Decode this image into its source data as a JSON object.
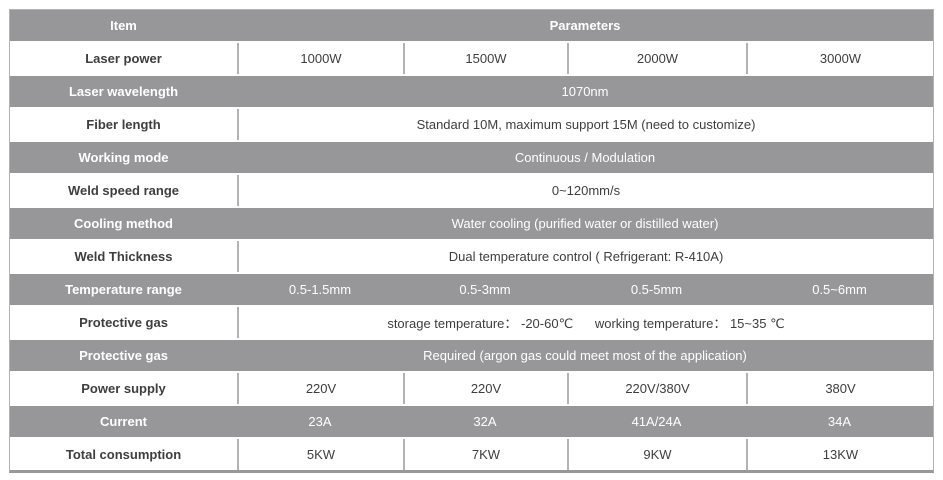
{
  "table": {
    "colors": {
      "row_gray": "#97979a",
      "separator": "#b3b3b5",
      "outer_border": "#b3b3b5",
      "text_dark": "#3e3e40",
      "text_light": "#ffffff"
    },
    "rows": [
      {
        "label": "Item",
        "value": "Parameters"
      },
      {
        "label": "Laser power",
        "values": [
          "1000W",
          "1500W",
          "2000W",
          "3000W"
        ]
      },
      {
        "label": "Laser wavelength",
        "value": "1070nm"
      },
      {
        "label": "Fiber length",
        "value": "Standard 10M, maximum support 15M (need to customize)"
      },
      {
        "label": "Working mode",
        "value": "Continuous / Modulation"
      },
      {
        "label": "Weld speed range",
        "value": "0~120mm/s"
      },
      {
        "label": "Cooling method",
        "value": "Water cooling (purified water or distilled water)"
      },
      {
        "label": "Weld Thickness",
        "value": "Dual temperature control ( Refrigerant: R-410A)"
      },
      {
        "label": "Temperature range",
        "values": [
          "0.5-1.5mm",
          "0.5-3mm",
          "0.5-5mm",
          "0.5~6mm"
        ]
      },
      {
        "label": "Protective gas",
        "value": "storage temperature： -20-60℃      working temperature： 15~35 ℃"
      },
      {
        "label": "Protective gas",
        "value": "Required (argon gas could meet most of the application)"
      },
      {
        "label": "Power supply",
        "values": [
          "220V",
          "220V",
          "220V/380V",
          "380V"
        ]
      },
      {
        "label": "Current",
        "values": [
          "23A",
          "32A",
          "41A/24A",
          "34A"
        ]
      },
      {
        "label": "Total consumption",
        "values": [
          "5KW",
          "7KW",
          "9KW",
          "13KW"
        ]
      }
    ]
  }
}
